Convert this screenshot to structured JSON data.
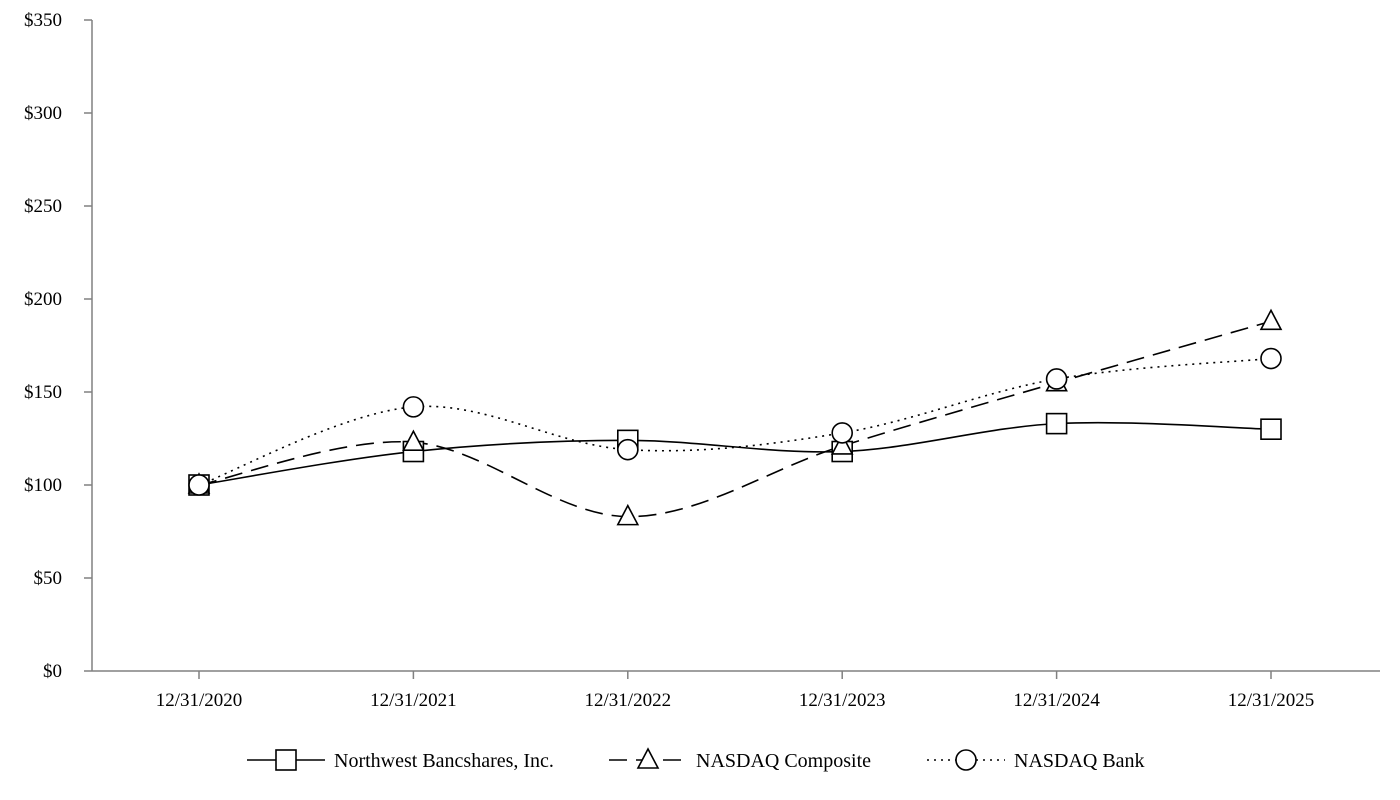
{
  "chart_data": {
    "type": "line",
    "title": "",
    "xlabel": "",
    "ylabel": "",
    "categories": [
      "12/31/2020",
      "12/31/2021",
      "12/31/2022",
      "12/31/2023",
      "12/31/2024",
      "12/31/2025"
    ],
    "y_ticks": [
      "$0",
      "$50",
      "$100",
      "$150",
      "$200",
      "$250",
      "$300",
      "$350"
    ],
    "ylim": [
      0,
      350
    ],
    "grid": false,
    "legend_position": "bottom",
    "series": [
      {
        "name": "Northwest Bancshares, Inc.",
        "values": [
          100,
          118,
          124,
          118,
          133,
          130
        ],
        "marker": "square",
        "line_style": "solid",
        "color": "#000000"
      },
      {
        "name": "NASDAQ Composite",
        "values": [
          100,
          123,
          83,
          121,
          155,
          188
        ],
        "marker": "triangle",
        "line_style": "dashed",
        "color": "#000000"
      },
      {
        "name": "NASDAQ Bank",
        "values": [
          100,
          142,
          119,
          128,
          157,
          168
        ],
        "marker": "circle",
        "line_style": "dotted",
        "color": "#000000"
      }
    ]
  }
}
